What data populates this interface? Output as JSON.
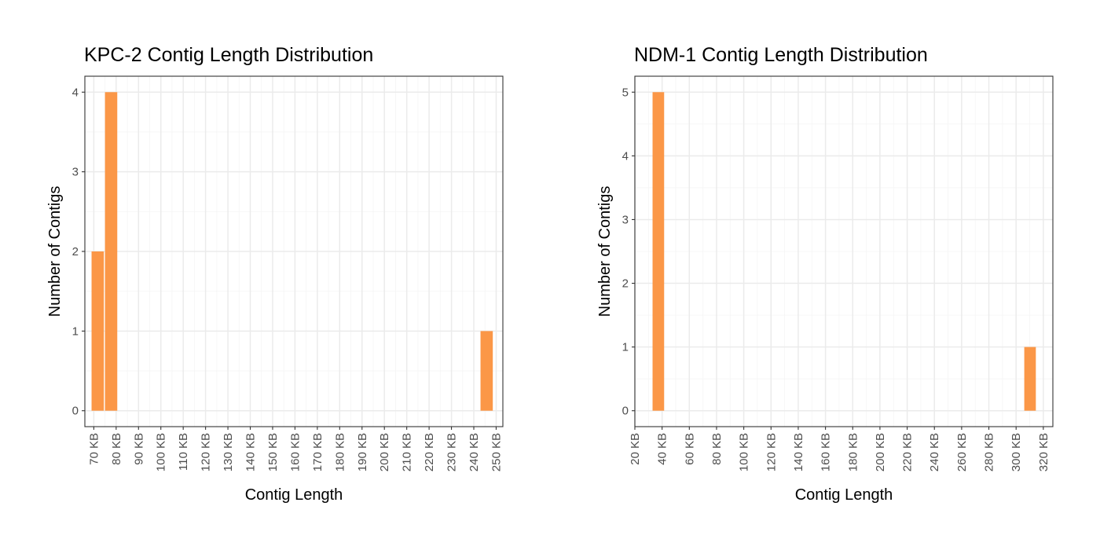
{
  "colors": {
    "bar": "#FB9747",
    "grid_major": "#EBEBEB",
    "grid_minor": "#F5F5F5",
    "panel_border": "#333333",
    "tick_text": "#4D4D4D"
  },
  "chart_data": [
    {
      "type": "bar",
      "title": "KPC-2 Contig Length Distribution",
      "xlabel": "Contig Length",
      "ylabel": "Number of Contigs",
      "x_unit": "KB",
      "bin_width_kb": 10,
      "xlim": [
        66,
        253
      ],
      "ylim": [
        -0.2,
        4.2
      ],
      "x_ticks": [
        70,
        80,
        90,
        100,
        110,
        120,
        130,
        140,
        150,
        160,
        170,
        180,
        190,
        200,
        210,
        220,
        230,
        240,
        250
      ],
      "x_tick_labels": [
        "70 KB",
        "80 KB",
        "90 KB",
        "100 KB",
        "110 KB",
        "120 KB",
        "130 KB",
        "140 KB",
        "150 KB",
        "160 KB",
        "170 KB",
        "180 KB",
        "190 KB",
        "200 KB",
        "210 KB",
        "220 KB",
        "230 KB",
        "240 KB",
        "250 KB"
      ],
      "y_ticks": [
        0,
        1,
        2,
        3,
        4
      ],
      "y_tick_labels": [
        "0",
        "1",
        "2",
        "3",
        "4"
      ],
      "bars": [
        {
          "x_start": 69,
          "x_end": 74.5,
          "value": 2
        },
        {
          "x_start": 75,
          "x_end": 80.5,
          "value": 4
        },
        {
          "x_start": 243,
          "x_end": 248.5,
          "value": 1
        }
      ],
      "grid": true,
      "legend": "none"
    },
    {
      "type": "bar",
      "title": "NDM-1 Contig Length Distribution",
      "xlabel": "Contig Length",
      "ylabel": "Number of Contigs",
      "x_unit": "KB",
      "bin_width_kb": 10,
      "xlim": [
        20,
        327
      ],
      "ylim": [
        -0.25,
        5.25
      ],
      "x_ticks": [
        20,
        40,
        60,
        80,
        100,
        120,
        140,
        160,
        180,
        200,
        220,
        240,
        260,
        280,
        300,
        320
      ],
      "x_tick_labels": [
        "20 KB",
        "40 KB",
        "60 KB",
        "80 KB",
        "100 KB",
        "120 KB",
        "140 KB",
        "160 KB",
        "180 KB",
        "200 KB",
        "220 KB",
        "240 KB",
        "260 KB",
        "280 KB",
        "300 KB",
        "320 KB"
      ],
      "y_ticks": [
        0,
        1,
        2,
        3,
        4,
        5
      ],
      "y_tick_labels": [
        "0",
        "1",
        "2",
        "3",
        "4",
        "5"
      ],
      "bars": [
        {
          "x_start": 33,
          "x_end": 41.5,
          "value": 5
        },
        {
          "x_start": 306,
          "x_end": 314.5,
          "value": 1
        }
      ],
      "grid": true,
      "legend": "none"
    }
  ]
}
